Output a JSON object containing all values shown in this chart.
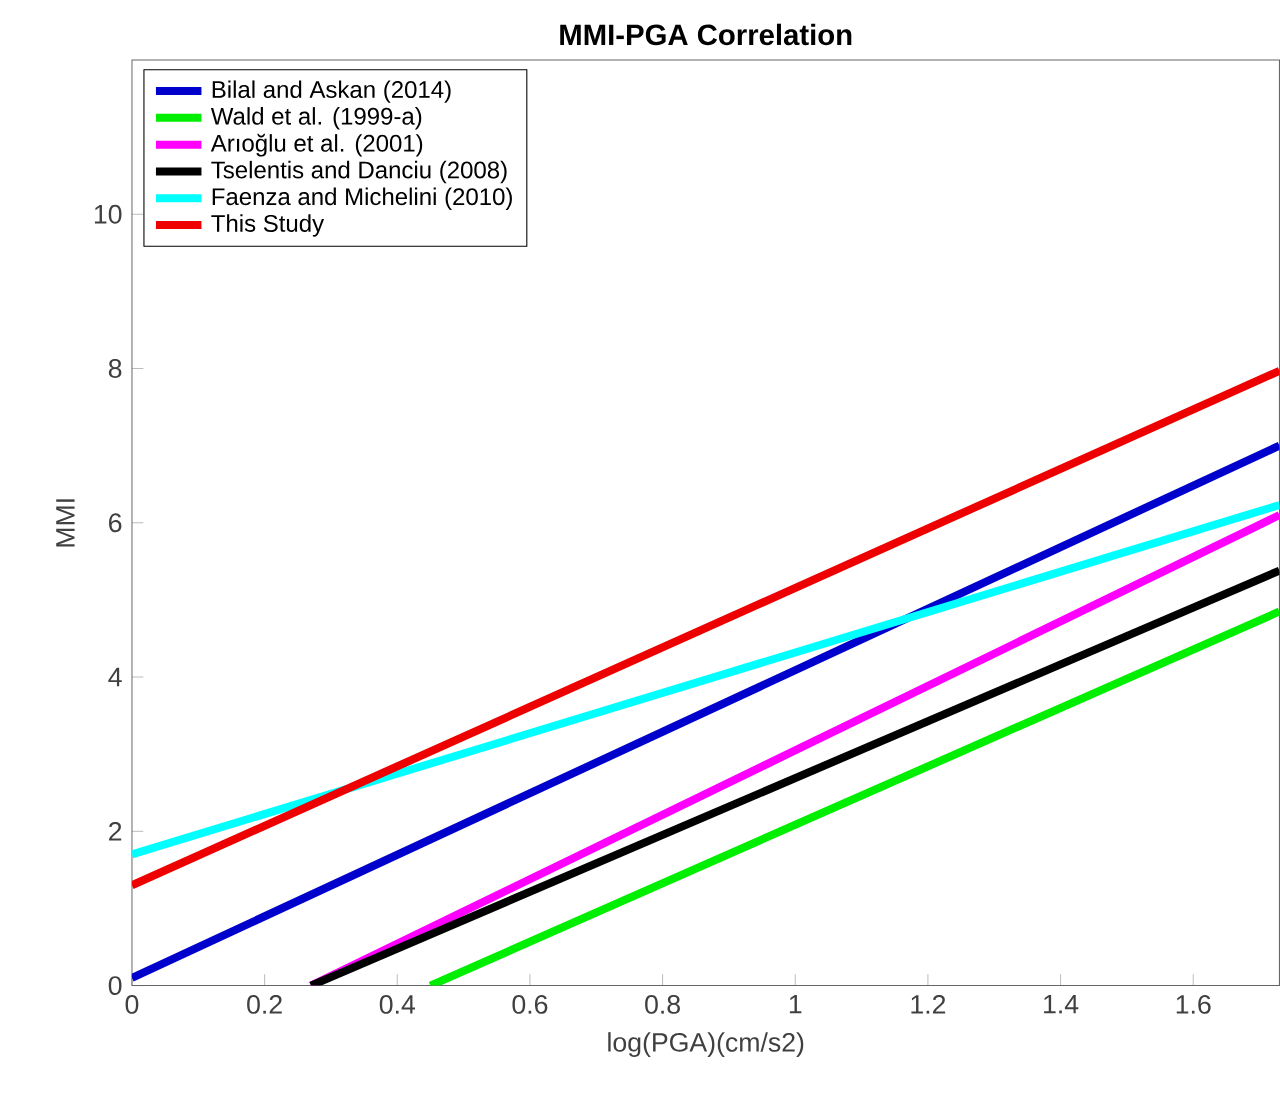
{
  "chart_data": {
    "type": "line",
    "title": "MMI-PGA Correlation",
    "xlabel": "log(PGA)(cm/s2)",
    "ylabel": "MMI",
    "xlim": [
      0,
      1.73
    ],
    "ylim": [
      0,
      12
    ],
    "xticks": [
      0,
      0.2,
      0.4,
      0.6,
      0.8,
      1,
      1.2,
      1.4,
      1.6
    ],
    "yticks": [
      0,
      2,
      4,
      6,
      8,
      10
    ],
    "legend": "top left",
    "marker": "none",
    "line_style": "solid",
    "series": [
      {
        "name": "Bilal and Askan (2014)",
        "color": "#0000cc",
        "x": [
          0,
          1.73
        ],
        "values": [
          0.1,
          7.0
        ]
      },
      {
        "name": "Wald et al. (1999-a)",
        "color": "#00ee00",
        "x": [
          0.45,
          1.73
        ],
        "values": [
          0,
          4.85
        ]
      },
      {
        "name": "Arıoğlu et al. (2001)",
        "color": "#ff00ff",
        "x": [
          0.27,
          1.73
        ],
        "values": [
          0,
          6.1
        ]
      },
      {
        "name": "Tselentis and Danciu (2008)",
        "color": "#000000",
        "x": [
          0.27,
          1.73
        ],
        "values": [
          0,
          5.38
        ]
      },
      {
        "name": "Faenza and Michelini (2010)",
        "color": "#00ffff",
        "x": [
          0,
          1.73
        ],
        "values": [
          1.7,
          6.23
        ]
      },
      {
        "name": "This Study",
        "color": "#ee0000",
        "x": [
          0,
          1.73
        ],
        "values": [
          1.3,
          7.97
        ]
      }
    ]
  }
}
